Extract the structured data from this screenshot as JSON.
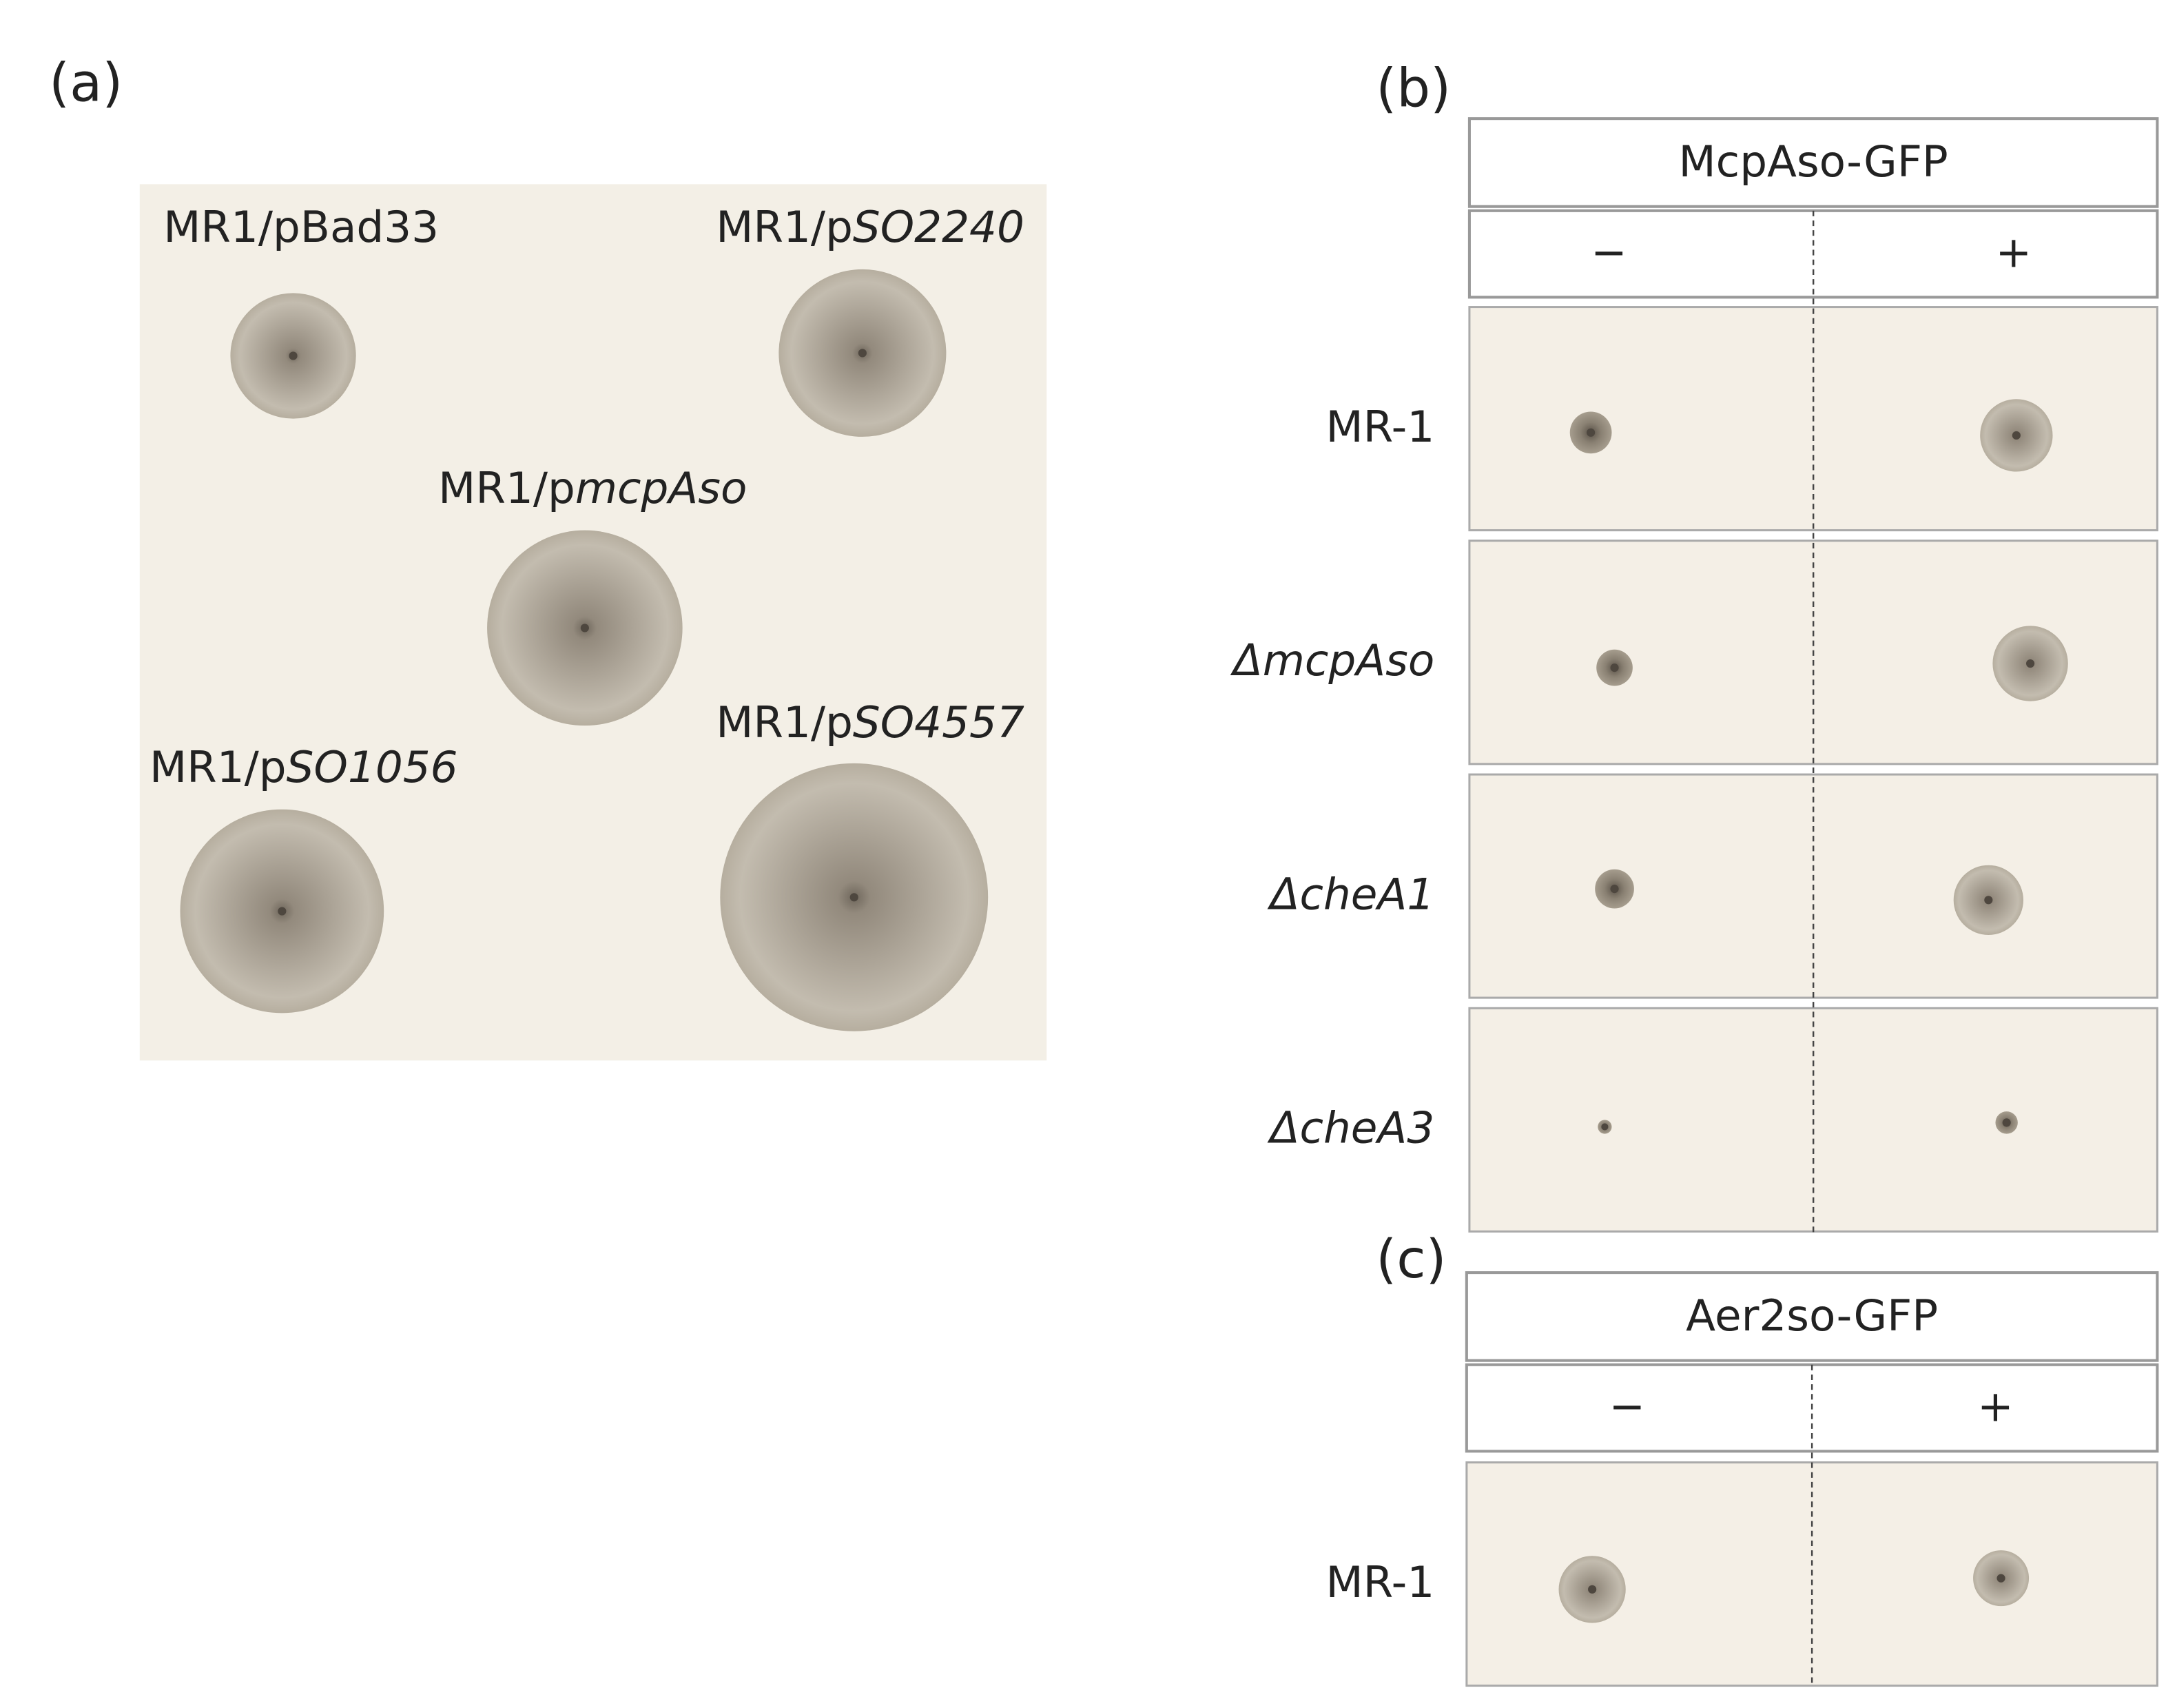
{
  "panel_a": {
    "label": "(a)",
    "colonies": [
      {
        "label": [
          "MR1/pBad33"
        ]
      },
      {
        "label": [
          "MR1/p",
          "SO2240"
        ]
      },
      {
        "label": [
          "MR1/p",
          "mcpAso"
        ]
      },
      {
        "label": [
          "MR1/p",
          "SO1056"
        ]
      },
      {
        "label": [
          "MR1/p",
          "SO4557"
        ]
      }
    ]
  },
  "panel_b": {
    "label": "(b)",
    "header": "McpAso-GFP",
    "columns": [
      "−",
      "+"
    ],
    "rows": [
      "MR-1",
      "ΔmcpAso",
      "ΔcheA1",
      "ΔcheA3"
    ]
  },
  "panel_c": {
    "label": "(c)",
    "header": "Aer2so-GFP",
    "columns": [
      "−",
      "+"
    ],
    "rows": [
      "MR-1"
    ]
  }
}
